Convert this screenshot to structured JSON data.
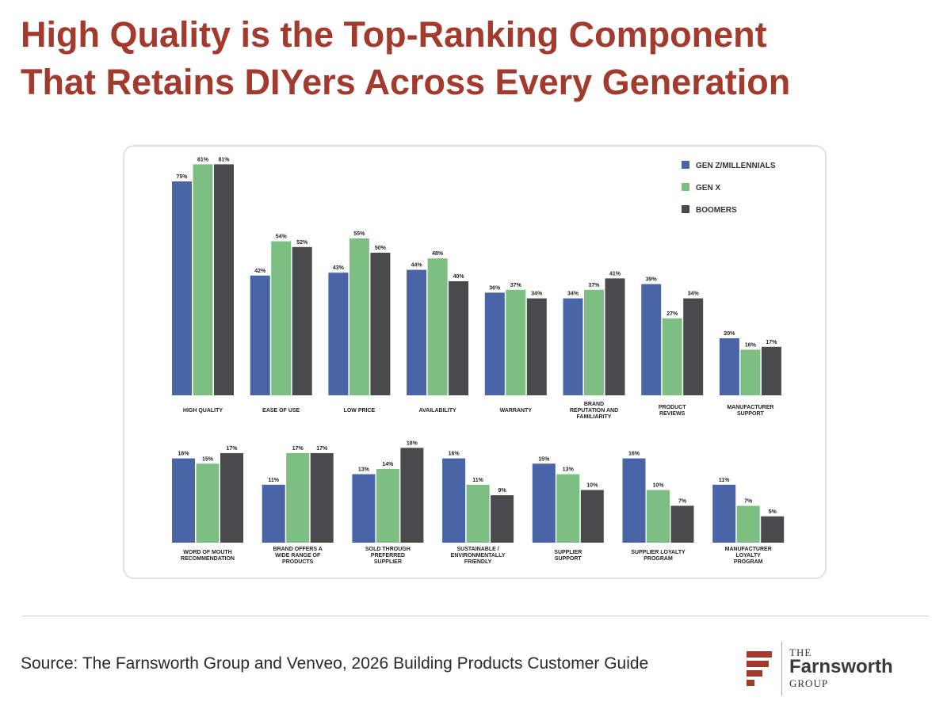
{
  "title": {
    "line1": "High Quality is the Top-Ranking Component",
    "line2": "That Retains DIYers Across Every Generation"
  },
  "source": "Source: The Farnsworth Group and Venveo, 2026 Building Products Customer Guide",
  "logo": {
    "the": "THE",
    "name": "Farnsworth",
    "group": "GROUP"
  },
  "chart_data": {
    "type": "bar",
    "legend_position": "top-right",
    "colors": {
      "GEN Z/MILLENNIALS": "#4a64a8",
      "GEN X": "#7dbf83",
      "BOOMERS": "#4a4a4c"
    },
    "legend": [
      "GEN Z/MILLENNIALS",
      "GEN X",
      "BOOMERS"
    ],
    "panels": [
      {
        "categories": [
          "HIGH QUALITY",
          "EASE OF USE",
          "LOW PRICE",
          "AVAILABILITY",
          "WARRANTY",
          "BRAND\nREPUTATION AND\nFAMILIARITY",
          "PRODUCT\nREVIEWS",
          "MANUFACTURER\nSUPPORT"
        ],
        "series": [
          {
            "name": "GEN Z/MILLENNIALS",
            "values": [
              75,
              42,
              43,
              44,
              36,
              34,
              39,
              20
            ]
          },
          {
            "name": "GEN X",
            "values": [
              81,
              54,
              55,
              48,
              37,
              37,
              27,
              16
            ]
          },
          {
            "name": "BOOMERS",
            "values": [
              81,
              52,
              50,
              40,
              34,
              41,
              34,
              17
            ]
          }
        ]
      },
      {
        "categories": [
          "WORD OF MOUTH\nRECOMMENDATION",
          "BRAND OFFERS A\nWIDE RANGE OF\nPRODUCTS",
          "SOLD THROUGH\nPREFERRED\nSUPPLIER",
          "SUSTAINABLE /\nENVIRONMENTALLY\nFRIENDLY",
          "SUPPLIER\nSUPPORT",
          "SUPPLIER LOYALTY\nPROGRAM",
          "MANUFACTURER\nLOYALTY\nPROGRAM"
        ],
        "series": [
          {
            "name": "GEN Z/MILLENNIALS",
            "values": [
              16,
              11,
              13,
              16,
              15,
              16,
              11
            ]
          },
          {
            "name": "GEN X",
            "values": [
              15,
              17,
              14,
              11,
              13,
              10,
              7
            ]
          },
          {
            "name": "BOOMERS",
            "values": [
              17,
              17,
              18,
              9,
              10,
              7,
              5
            ]
          }
        ]
      }
    ]
  }
}
